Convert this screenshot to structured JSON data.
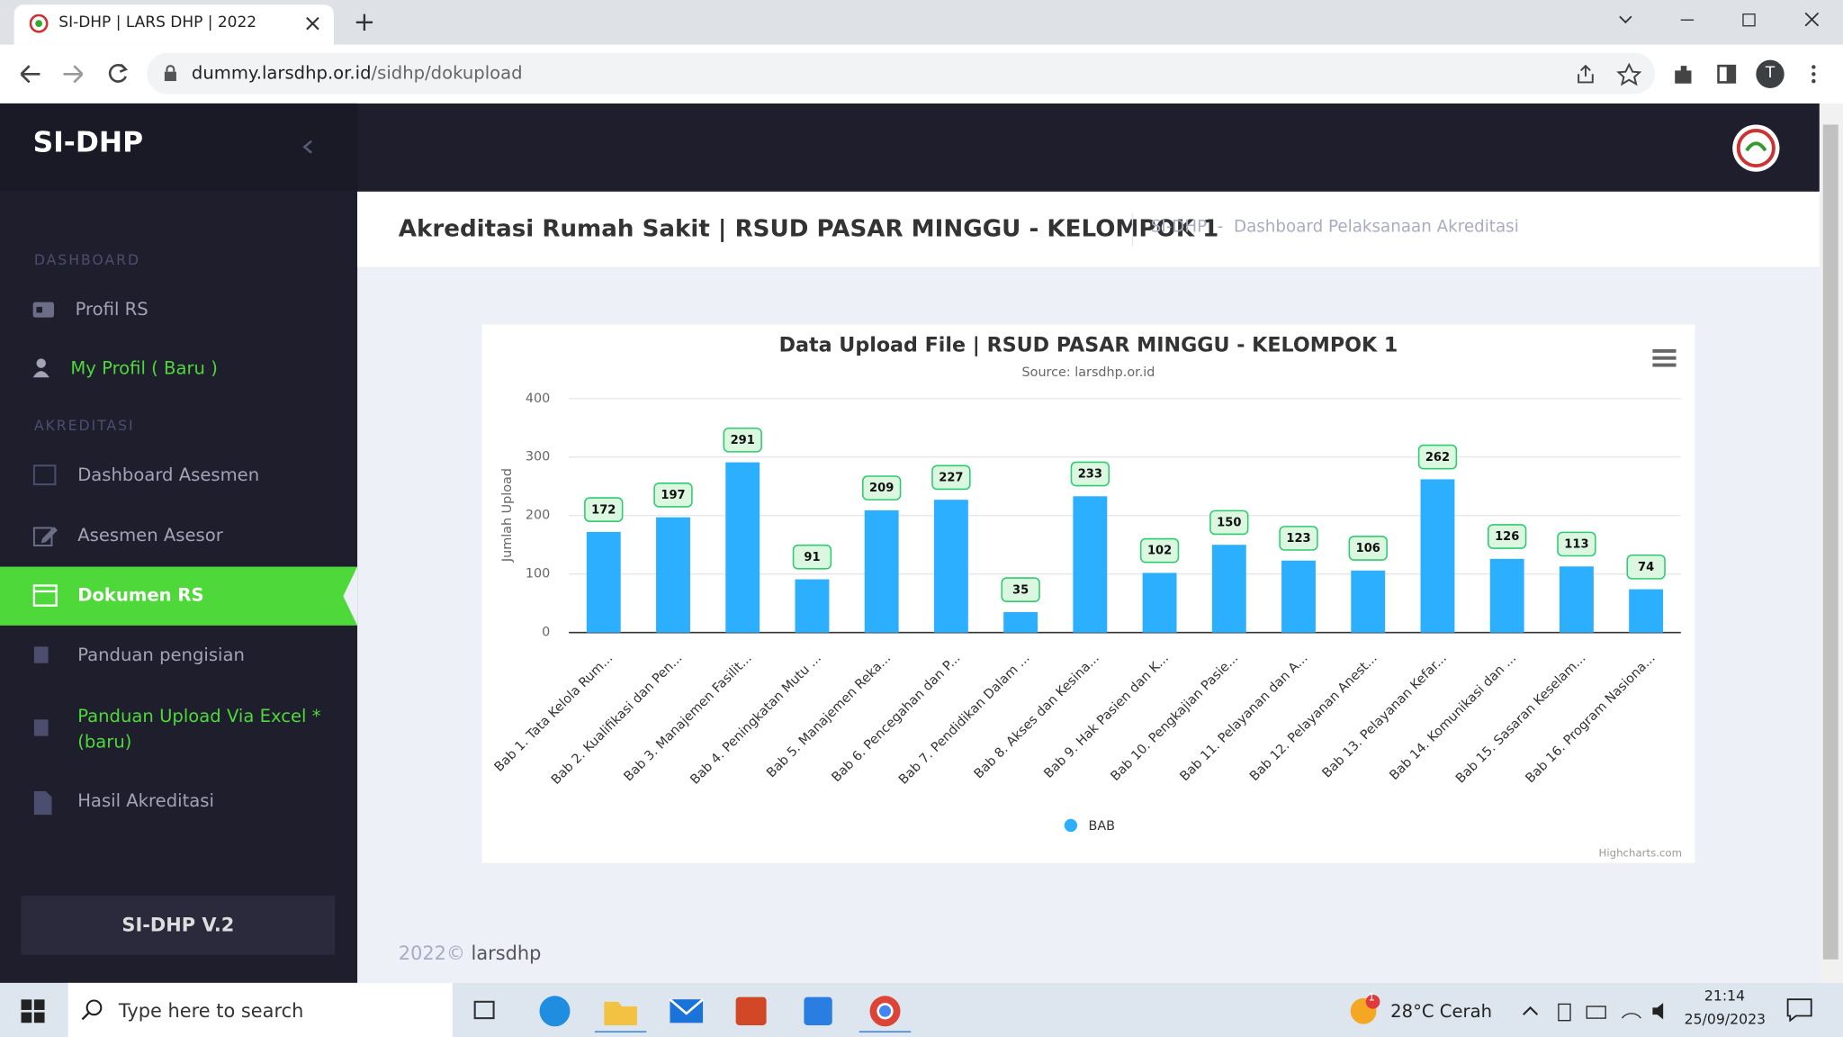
{
  "browser": {
    "tab_title": "SI-DHP | LARS DHP | 2022",
    "url_host": "dummy.larsdhp.or.id",
    "url_path": "/sidhp/dokupload",
    "profile": "T"
  },
  "sidebar": {
    "brand": "SI-DHP",
    "sections": [
      {
        "heading": "DASHBOARD",
        "items": [
          "Profil RS",
          "My Profil ( Baru )"
        ]
      },
      {
        "heading": "AKREDITASI",
        "items": [
          "Dashboard Asesmen",
          "Asesmen Asesor",
          "Dokumen RS",
          "Panduan pengisian",
          "Panduan Upload Via Excel * (baru)",
          "Hasil Akreditasi"
        ]
      }
    ],
    "version": "SI-DHP V.2"
  },
  "header": {
    "title": "Akreditasi Rumah Sakit | RSUD PASAR MINGGU - KELOMPOK 1",
    "breadcrumb": "SI-DHP  -  Dashboard Pelaksanaan Akreditasi"
  },
  "chart_data": {
    "type": "bar",
    "title": "Data Upload File | RSUD PASAR MINGGU - KELOMPOK 1",
    "subtitle": "Source: larsdhp.or.id",
    "y_label": "Jumlah Upload",
    "credits": "Highcharts.com",
    "categories": [
      "Bab 1. Tata Kelola Rum...",
      "Bab 2. Kualifikasi dan Pen...",
      "Bab 3. Manajemen Fasilit...",
      "Bab 4. Peningkatan Mutu ...",
      "Bab 5. Manajemen Reka...",
      "Bab 6. Pencegahan dan P...",
      "Bab 7. Pendidikan Dalam ...",
      "Bab 8. Akses dan Kesina...",
      "Bab 9. Hak Pasien dan K...",
      "Bab 10. Pengkajian Pasie...",
      "Bab 11. Pelayanan dan A...",
      "Bab 12. Pelayanan Anest...",
      "Bab 13. Pelayanan Kefar...",
      "Bab 14. Komunikasi dan ...",
      "Bab 15. Sasaran Keselam...",
      "Bab 16. Program Nasiona..."
    ],
    "series": [
      {
        "name": "BAB",
        "color": "#2caffe",
        "values": [
          172,
          197,
          291,
          91,
          209,
          227,
          35,
          233,
          102,
          150,
          123,
          106,
          262,
          126,
          113,
          74
        ]
      }
    ],
    "ylim": [
      0,
      400
    ],
    "yticks": [
      0,
      100,
      200,
      300,
      400
    ],
    "grid": true,
    "legend": "bottom"
  },
  "footer": {
    "year": "2022©",
    "name": "larsdhp"
  },
  "taskbar": {
    "search": "Type here to search",
    "notification": "1",
    "temperature": "28°C",
    "weather": "Cerah",
    "time": "21:14",
    "date": "25/09/2023"
  }
}
